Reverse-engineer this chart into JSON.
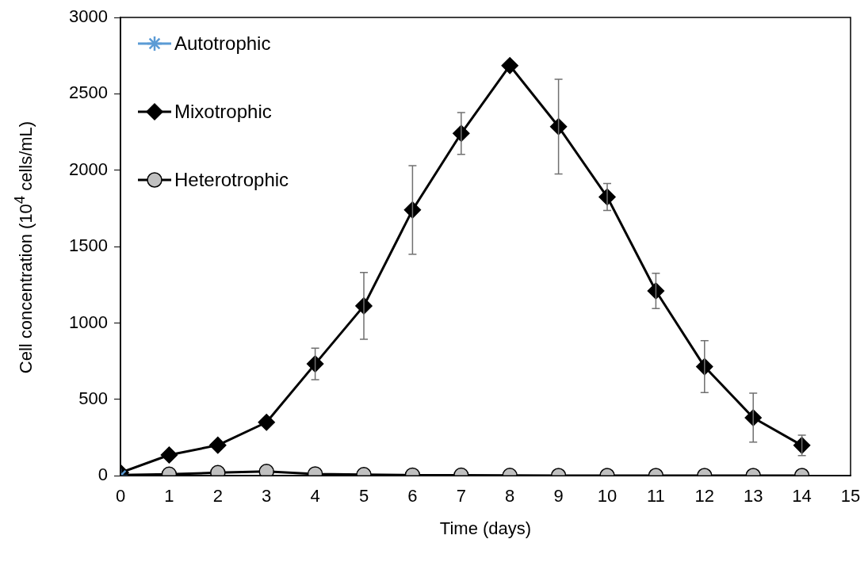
{
  "chart_data": {
    "type": "line",
    "xlabel": "Time (days)",
    "ylabel": "Cell concentration (10$^{4}$ cells/mL)",
    "x": [
      0,
      1,
      2,
      3,
      4,
      5,
      6,
      7,
      8,
      9,
      10,
      11,
      12,
      13,
      14
    ],
    "xlim": [
      0,
      15
    ],
    "xticks": [
      0,
      1,
      2,
      3,
      4,
      5,
      6,
      7,
      8,
      9,
      10,
      11,
      12,
      13,
      14,
      15
    ],
    "ylim": [
      0,
      3000
    ],
    "yticks": [
      0,
      500,
      1000,
      1500,
      2000,
      2500,
      3000
    ],
    "grid": false,
    "legend": "top left",
    "line_style": "solid",
    "series": [
      {
        "name": "Autotrophic",
        "color": "#5b9bd5",
        "marker": "cross",
        "values": [
          0,
          null,
          null,
          null,
          null,
          null,
          null,
          null,
          null,
          null,
          null,
          null,
          null,
          null,
          null
        ]
      },
      {
        "name": "Mixotrophic",
        "color": "#000000",
        "marker": "diamond",
        "values": [
          20,
          136,
          200,
          350,
          732,
          1112,
          1740,
          2241,
          2685,
          2285,
          1825,
          1210,
          714,
          380,
          199
        ],
        "errors": [
          null,
          null,
          null,
          null,
          103,
          218,
          290,
          137,
          null,
          310,
          88,
          115,
          170,
          160,
          67
        ]
      },
      {
        "name": "Heterotrophic",
        "color": "#c0c0c0",
        "marker": "circle",
        "values": [
          5,
          10,
          20,
          28,
          12,
          7,
          4,
          3,
          2,
          1,
          1,
          1,
          1,
          1,
          1
        ]
      }
    ]
  }
}
